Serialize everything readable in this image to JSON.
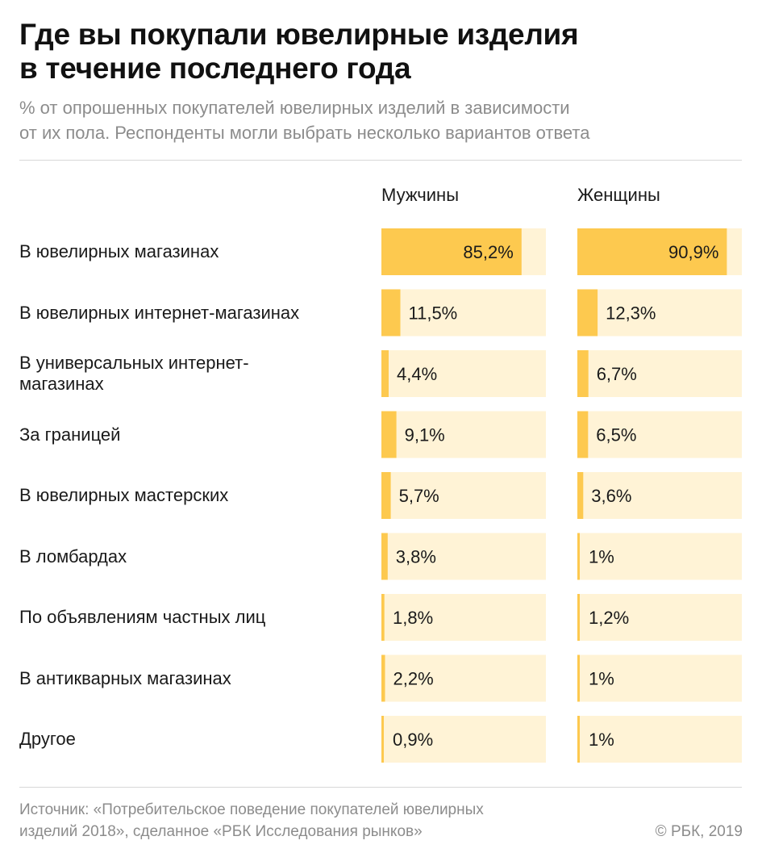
{
  "header": {
    "title": "Где вы покупали ювелирные изделия\nв течение последнего года",
    "subtitle": "% от опрошенных покупателей ювелирных изделий в зависимости\nот их пола. Респонденты могли выбрать несколько вариантов ответа"
  },
  "colors": {
    "bar_fill": "#fdc94f",
    "bar_track": "#fff3d6",
    "text": "#1a1a1a",
    "muted": "#8c8c8c"
  },
  "chart_data": {
    "type": "bar",
    "orientation": "horizontal",
    "categories": [
      "В ювелирных магазинах",
      "В ювелирных интернет-магазинах",
      "В универсальных интернет-\nмагазинах",
      "За границей",
      "В ювелирных мастерских",
      "В ломбардах",
      "По объявлениям частных лиц",
      "В антикварных магазинах",
      "Другое"
    ],
    "series": [
      {
        "name": "Мужчины",
        "values": [
          85.2,
          11.5,
          4.4,
          9.1,
          5.7,
          3.8,
          1.8,
          2.2,
          0.9
        ],
        "labels": [
          "85,2%",
          "11,5%",
          "4,4%",
          "9,1%",
          "5,7%",
          "3,8%",
          "1,8%",
          "2,2%",
          "0,9%"
        ]
      },
      {
        "name": "Женщины",
        "values": [
          90.9,
          12.3,
          6.7,
          6.5,
          3.6,
          1,
          1.2,
          1,
          1
        ],
        "labels": [
          "90,9%",
          "12,3%",
          "6,7%",
          "6,5%",
          "3,6%",
          "1%",
          "1,2%",
          "1%",
          "1%"
        ]
      }
    ],
    "xlim": [
      0,
      100
    ]
  },
  "footer": {
    "source": "Источник:  «Потребительское поведение покупателей ювелирных\nизделий 2018», сделанное «РБК Исследования рынков»",
    "copyright": "© РБК, 2019"
  }
}
